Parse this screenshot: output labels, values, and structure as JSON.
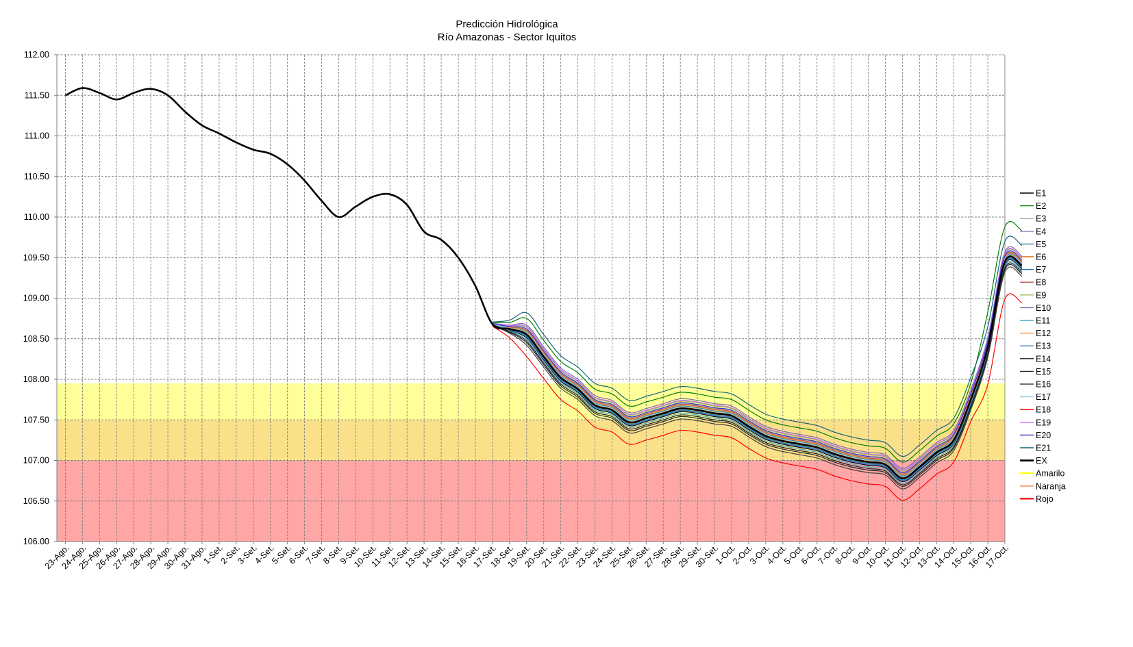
{
  "chart_data": {
    "type": "line",
    "title": "Predicción Hidrológica",
    "subtitle": "Río Amazonas - Sector Iquitos",
    "ylim": [
      106,
      112
    ],
    "yticks": [
      "106.00",
      "106.50",
      "107.00",
      "107.50",
      "108.00",
      "108.50",
      "109.00",
      "109.50",
      "110.00",
      "110.50",
      "111.00",
      "111.50",
      "112.00"
    ],
    "grid": true,
    "legend_position": "right",
    "categories": [
      "23-Ago.",
      "24-Ago.",
      "25-Ago.",
      "26-Ago.",
      "27-Ago.",
      "28-Ago.",
      "29-Ago.",
      "30-Ago.",
      "31-Ago.",
      "1-Set.",
      "2-Set.",
      "3-Set.",
      "4-Set.",
      "5-Set.",
      "6-Set.",
      "7-Set.",
      "8-Set.",
      "9-Set.",
      "10-Set.",
      "11-Set.",
      "12-Set.",
      "13-Set.",
      "14-Set.",
      "15-Set.",
      "16-Set.",
      "17-Set.",
      "18-Set.",
      "19-Set.",
      "20-Set.",
      "21-Set.",
      "22-Set.",
      "23-Set.",
      "24-Set.",
      "25-Set.",
      "26-Set.",
      "27-Set.",
      "28-Set.",
      "29-Set.",
      "30-Set.",
      "1-Oct.",
      "2-Oct.",
      "3-Oct.",
      "4-Oct.",
      "5-Oct.",
      "6-Oct.",
      "7-Oct.",
      "8-Oct.",
      "9-Oct.",
      "10-Oct.",
      "11-Oct.",
      "12-Oct.",
      "13-Oct.",
      "14-Oct.",
      "15-Oct.",
      "16-Oct.",
      "17-Oct."
    ],
    "bands": [
      {
        "name": "Amarilo",
        "from": 107.5,
        "to": 107.95,
        "color": "#ffff99",
        "legend_color": "#ffff00"
      },
      {
        "name": "Naranja",
        "from": 107.0,
        "to": 107.5,
        "color": "#fbe08a",
        "legend_color": "#f4a582"
      },
      {
        "name": "Rojo",
        "from": 106.0,
        "to": 107.0,
        "color": "#ffa6a6",
        "legend_color": "#ff0000"
      }
    ],
    "observed": {
      "name": "EX",
      "color": "#000000",
      "values": [
        111.5,
        111.59,
        111.53,
        111.45,
        111.53,
        111.58,
        111.5,
        111.3,
        111.13,
        111.03,
        110.92,
        110.83,
        110.78,
        110.65,
        110.45,
        110.2,
        110.0,
        110.13,
        110.25,
        110.28,
        110.15,
        109.82,
        109.72,
        109.5,
        109.15,
        108.68
      ]
    },
    "forecast_start_index": 25,
    "ensemble_mean": [
      108.68,
      108.62,
      108.55,
      108.28,
      108.02,
      107.88,
      107.68,
      107.62,
      107.47,
      107.52,
      107.58,
      107.64,
      107.62,
      107.58,
      107.55,
      107.42,
      107.3,
      107.24,
      107.2,
      107.16,
      107.08,
      107.02,
      106.98,
      106.95,
      106.78,
      106.92,
      107.1,
      107.25,
      107.75,
      108.4,
      109.45,
      109.4
    ],
    "series": [
      {
        "name": "E1",
        "color": "#000000",
        "offset": -0.04
      },
      {
        "name": "E2",
        "color": "#008000",
        "offset": 0.2,
        "end_offset": 0.43
      },
      {
        "name": "E3",
        "color": "#a6a6a6",
        "offset": 0.06
      },
      {
        "name": "E4",
        "color": "#7f6fa8",
        "offset": 0.12
      },
      {
        "name": "E5",
        "color": "#31849b",
        "offset": 0.03
      },
      {
        "name": "E6",
        "color": "#e46c0a",
        "offset": 0.01
      },
      {
        "name": "E7",
        "color": "#1f77b4",
        "offset": -0.02
      },
      {
        "name": "E8",
        "color": "#c0504d",
        "offset": 0.05
      },
      {
        "name": "E9",
        "color": "#9bbb59",
        "offset": 0.09
      },
      {
        "name": "E10",
        "color": "#8064a2",
        "offset": 0.0
      },
      {
        "name": "E11",
        "color": "#4bacc6",
        "offset": -0.06
      },
      {
        "name": "E12",
        "color": "#f79646",
        "offset": 0.04
      },
      {
        "name": "E13",
        "color": "#4f81bd",
        "offset": -0.03
      },
      {
        "name": "E14",
        "color": "#1f1f1f",
        "offset": -0.08
      },
      {
        "name": "E15",
        "color": "#262626",
        "offset": -0.1
      },
      {
        "name": "E16",
        "color": "#404040",
        "offset": -0.13
      },
      {
        "name": "E17",
        "color": "#92cddc",
        "offset": 0.02
      },
      {
        "name": "E18",
        "color": "#ff0000",
        "offset": -0.27,
        "end_offset": -0.46
      },
      {
        "name": "E19",
        "color": "#cc66ff",
        "offset": 0.1
      },
      {
        "name": "E20",
        "color": "#3333cc",
        "offset": 0.07
      },
      {
        "name": "E21",
        "color": "#17657a",
        "offset": 0.27,
        "end_offset": 0.25
      }
    ],
    "legend": [
      "E1",
      "E2",
      "E3",
      "E4",
      "E5",
      "E6",
      "E7",
      "E8",
      "E9",
      "E10",
      "E11",
      "E12",
      "E13",
      "E14",
      "E15",
      "E16",
      "E17",
      "E18",
      "E19",
      "E20",
      "E21",
      "EX",
      "Amarilo",
      "Naranja",
      "Rojo"
    ]
  }
}
